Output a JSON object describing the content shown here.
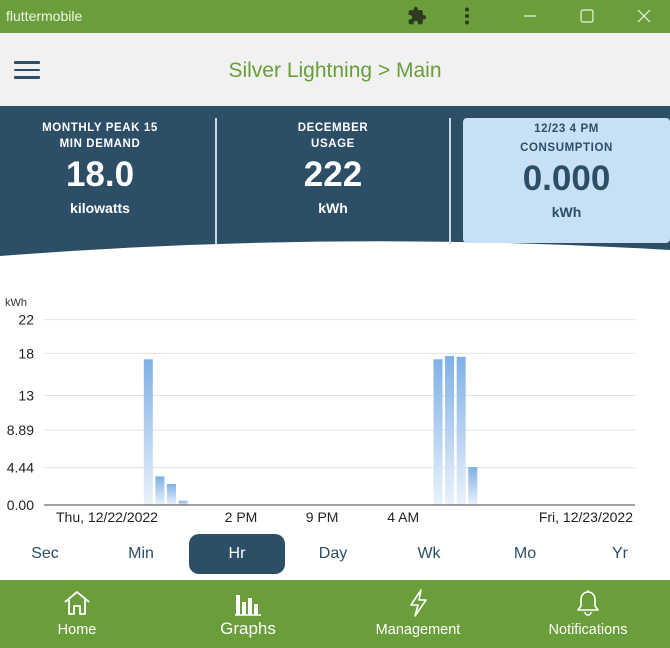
{
  "window": {
    "title": "fluttermobile"
  },
  "appbar": {
    "title": "Silver Lightning > Main"
  },
  "stats": [
    {
      "label_line1": "MONTHLY PEAK 15",
      "label_line2": "MIN DEMAND",
      "value": "18.0",
      "unit": "kilowatts"
    },
    {
      "label_line1": "DECEMBER",
      "label_line2": "USAGE",
      "value": "222",
      "unit": "kWh"
    },
    {
      "label_line1": "12/23 4 PM",
      "label_line2": "CONSUMPTION",
      "value": "0.000",
      "unit": "kWh"
    }
  ],
  "chart_data": {
    "type": "bar",
    "ylabel": "kWh",
    "yticks": [
      "0.00",
      "4.44",
      "8.89",
      "13",
      "18",
      "22"
    ],
    "ylim": [
      0,
      22.2
    ],
    "x_tick_labels": [
      "Thu, 12/22/2022",
      "2 PM",
      "9 PM",
      "4 AM",
      "Fri, 12/23/2022"
    ],
    "x_tick_hours": [
      0,
      14,
      21,
      28,
      48
    ],
    "bars": [
      {
        "hour": 6,
        "value": 17.3
      },
      {
        "hour": 7,
        "value": 3.4
      },
      {
        "hour": 8,
        "value": 2.5
      },
      {
        "hour": 9,
        "value": 0.5
      },
      {
        "hour": 31,
        "value": 17.3
      },
      {
        "hour": 32,
        "value": 17.7
      },
      {
        "hour": 33,
        "value": 17.6
      },
      {
        "hour": 34,
        "value": 4.5
      }
    ],
    "x_hour_range": [
      -3,
      48
    ],
    "grid": true,
    "bar_color": "#7fb0e6"
  },
  "ranges": [
    "Sec",
    "Min",
    "Hr",
    "Day",
    "Wk",
    "Mo",
    "Yr"
  ],
  "active_range": "Hr",
  "nav": [
    {
      "label": "Home",
      "icon": "home-icon"
    },
    {
      "label": "Graphs",
      "icon": "bar-chart-icon"
    },
    {
      "label": "Management",
      "icon": "lightning-icon"
    },
    {
      "label": "Notifications",
      "icon": "bell-icon"
    }
  ],
  "colors": {
    "primary_green": "#6a9e3a",
    "navy": "#2c4e66",
    "highlight": "#c7e0f5"
  }
}
